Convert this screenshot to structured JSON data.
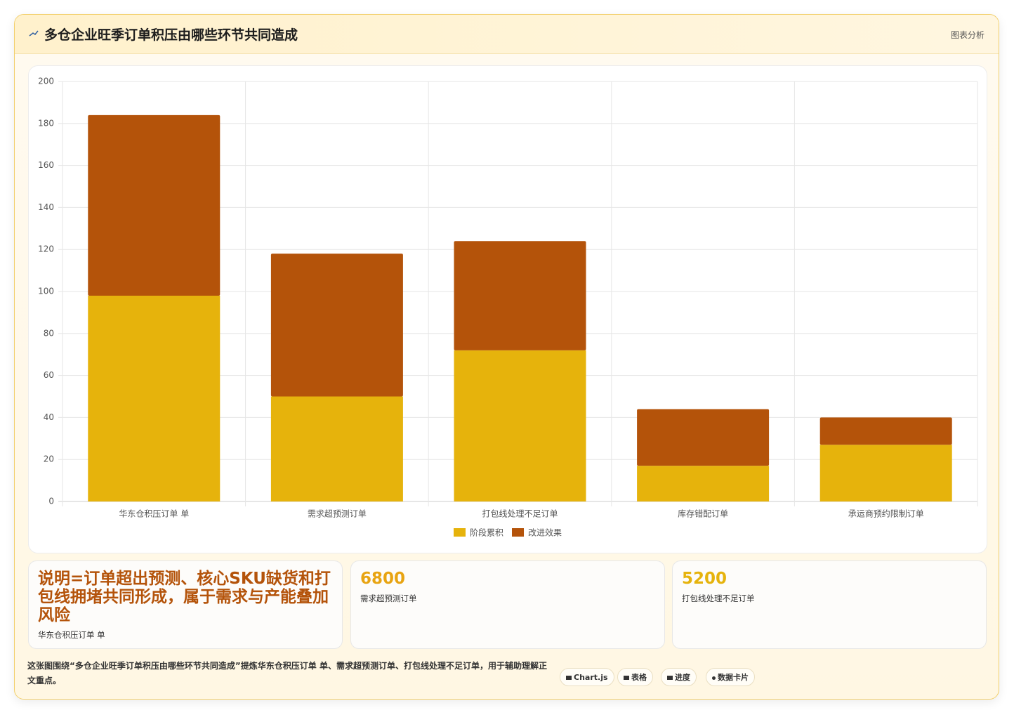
{
  "header": {
    "title": "多仓企业旺季订单积压由哪些环节共同造成",
    "action": "图表分析"
  },
  "chart_data": {
    "type": "bar",
    "stacked": true,
    "grid": true,
    "categories": [
      "华东仓积压订单 单",
      "需求超预测订单",
      "打包线处理不足订单",
      "库存错配订单",
      "承运商预约限制订单"
    ],
    "series": [
      {
        "name": "阶段累积",
        "color": "#e6b30c",
        "values": [
          98,
          50,
          72,
          17,
          27
        ]
      },
      {
        "name": "改进效果",
        "color": "#b4530a",
        "values": [
          86,
          68,
          52,
          27,
          13
        ]
      }
    ],
    "ylim": [
      0,
      200
    ],
    "yticks": [
      0,
      20,
      40,
      60,
      80,
      100,
      120,
      140,
      160,
      180,
      200
    ],
    "legend": "bottom"
  },
  "cards": [
    {
      "value": "说明=订单超出预测、核心SKU缺货和打包线拥堵共同形成，属于需求与产能叠加风险",
      "label": "华东仓积压订单 单"
    },
    {
      "value": 6800,
      "label": "需求超预测订单"
    },
    {
      "value": 5200,
      "label": "打包线处理不足订单"
    }
  ],
  "footer": {
    "text": "这张图围绕“多仓企业旺季订单积压由哪些环节共同造成”提炼华东仓积压订单 单、需求超预测订单、打包线处理不足订单，用于辅助理解正文重点。",
    "tags": [
      "Chart.js",
      "表格",
      "进度",
      "数据卡片"
    ]
  }
}
